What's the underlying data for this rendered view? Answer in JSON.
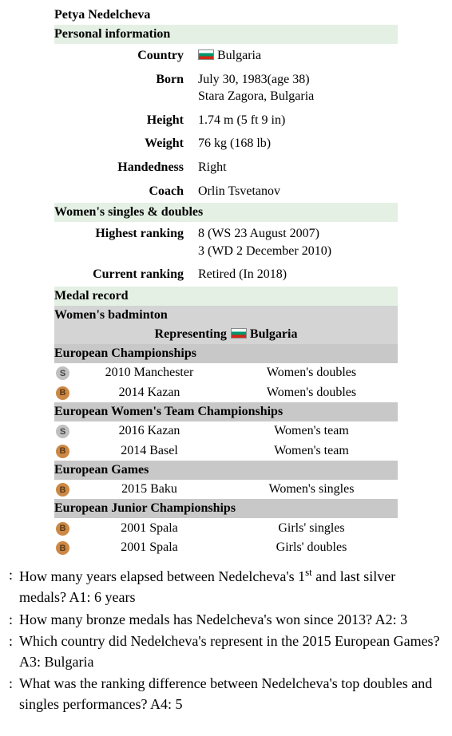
{
  "colors": {
    "section_green": "#e5f0e5",
    "section_grey": "#c8c8c8",
    "section_grey_light": "#d4d4d4",
    "silver_medal": "#c0c0c0",
    "bronze_medal": "#cc8844",
    "flag_white": "#ffffff",
    "flag_green": "#00966e",
    "flag_red": "#d62612"
  },
  "infobox": {
    "name": "Petya Nedelcheva",
    "sections": {
      "personal_header": "Personal information",
      "discipline_header": "Women's singles & doubles",
      "medal_header": "Medal record",
      "sport_header": "Women's badminton",
      "representing_prefix": "Representing",
      "representing_country": "Bulgaria"
    },
    "personal": {
      "country_label": "Country",
      "country_name": "Bulgaria",
      "born_label": "Born",
      "born_line1": "July 30, 1983(age 38)",
      "born_line2": "Stara Zagora, Bulgaria",
      "height_label": "Height",
      "height_value": "1.74 m (5 ft 9 in)",
      "weight_label": "Weight",
      "weight_value": "76 kg (168 lb)",
      "hand_label": "Handedness",
      "hand_value": "Right",
      "coach_label": "Coach",
      "coach_value": "Orlin Tsvetanov"
    },
    "rankings": {
      "highest_label": "Highest ranking",
      "highest_line1": "8 (WS 23 August 2007)",
      "highest_line2": "3 (WD 2 December 2010)",
      "current_label": "Current ranking",
      "current_value": "Retired (In 2018)"
    },
    "competitions": [
      {
        "title": "European Championships",
        "rows": [
          {
            "medal": "S",
            "medal_type": "silver",
            "year_place": "2010 Manchester",
            "event": "Women's doubles"
          },
          {
            "medal": "B",
            "medal_type": "bronze",
            "year_place": "2014 Kazan",
            "event": "Women's doubles"
          }
        ]
      },
      {
        "title": "European Women's Team Championships",
        "rows": [
          {
            "medal": "S",
            "medal_type": "silver",
            "year_place": "2016 Kazan",
            "event": "Women's team"
          },
          {
            "medal": "B",
            "medal_type": "bronze",
            "year_place": "2014 Basel",
            "event": "Women's team"
          }
        ]
      },
      {
        "title": "European Games",
        "rows": [
          {
            "medal": "B",
            "medal_type": "bronze",
            "year_place": "2015 Baku",
            "event": "Women's singles"
          }
        ]
      },
      {
        "title": "European Junior Championships",
        "rows": [
          {
            "medal": "B",
            "medal_type": "bronze",
            "year_place": "2001 Spala",
            "event": "Girls' singles"
          },
          {
            "medal": "B",
            "medal_type": "bronze",
            "year_place": "2001 Spala",
            "event": "Girls' doubles"
          }
        ]
      }
    ]
  },
  "questions": {
    "q1": {
      "lead": ":",
      "text_pre": "How many years elapsed between Nedelcheva's 1",
      "sup": "st",
      "text_post": " and last silver medals? A1: 6 years"
    },
    "q2": {
      "lead": ":",
      "text": "How many bronze medals has Nedelcheva's won since 2013? A2: 3"
    },
    "q3": {
      "lead": ":",
      "text": "Which country did Nedelcheva's represent in the 2015 European Games? A3: Bulgaria"
    },
    "q4": {
      "lead": ":",
      "text": "What was the ranking difference between Nedelcheva's top doubles and singles performances? A4: 5"
    }
  }
}
